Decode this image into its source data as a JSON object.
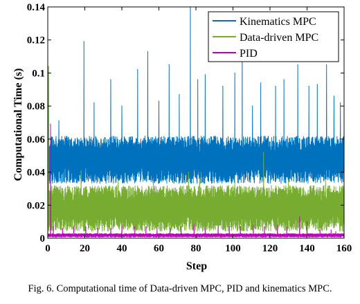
{
  "caption": "Fig. 6.  Computational time of Data-driven MPC, PID and kinematics MPC.",
  "chart_data": {
    "type": "line",
    "title": "",
    "xlabel": "Step",
    "ylabel": "Computational Time (s)",
    "xlim": [
      0,
      160
    ],
    "ylim": [
      0,
      0.14
    ],
    "xticks": [
      0,
      20,
      40,
      60,
      80,
      100,
      120,
      140,
      160
    ],
    "yticks": [
      0,
      0.02,
      0.04,
      0.06,
      0.08,
      0.1,
      0.12,
      0.14
    ],
    "xtick_labels": [
      "0",
      "20",
      "40",
      "60",
      "80",
      "100",
      "120",
      "140",
      "160"
    ],
    "ytick_labels": [
      "0",
      "0.02",
      "0.04",
      "0.06",
      "0.08",
      "0.1",
      "0.12",
      "0.14"
    ],
    "grid": false,
    "legend_position": "top-right",
    "series": [
      {
        "name": "Kinematics MPC",
        "color": "#0072BD",
        "band": [
          0.033,
          0.062
        ],
        "peaks": [
          [
            0.4,
            0.101
          ],
          [
            6,
            0.071
          ],
          [
            19.5,
            0.119
          ],
          [
            25,
            0.082
          ],
          [
            34,
            0.096
          ],
          [
            40,
            0.08
          ],
          [
            48.5,
            0.102
          ],
          [
            54,
            0.113
          ],
          [
            60,
            0.083
          ],
          [
            65.5,
            0.105
          ],
          [
            71,
            0.087
          ],
          [
            77,
            0.14
          ],
          [
            81,
            0.096
          ],
          [
            85,
            0.099
          ],
          [
            94.5,
            0.092
          ],
          [
            101,
            0.1
          ],
          [
            105,
            0.116
          ],
          [
            110.5,
            0.08
          ],
          [
            115,
            0.094
          ],
          [
            123,
            0.092
          ],
          [
            127.5,
            0.096
          ],
          [
            135,
            0.105
          ],
          [
            141,
            0.092
          ],
          [
            145.5,
            0.093
          ],
          [
            150.5,
            0.105
          ],
          [
            154.5,
            0.086
          ],
          [
            158,
            0.082
          ]
        ]
      },
      {
        "name": "Data-driven MPC",
        "color": "#77AC30",
        "band": [
          0.004,
          0.032
        ],
        "peaks": [
          [
            0.4,
            0.104
          ],
          [
            18,
            0.041
          ],
          [
            38,
            0.035
          ],
          [
            57,
            0.036
          ],
          [
            76,
            0.04
          ],
          [
            82,
            0.036
          ],
          [
            101,
            0.037
          ],
          [
            116.5,
            0.052
          ],
          [
            130,
            0.035
          ],
          [
            150,
            0.035
          ]
        ]
      },
      {
        "name": "PID",
        "color": "#C000C0",
        "band": [
          0.0005,
          0.003
        ],
        "peaks": [
          [
            1.5,
            0.069
          ],
          [
            3,
            0.007
          ],
          [
            8,
            0.006
          ],
          [
            14,
            0.007
          ],
          [
            20.5,
            0.007
          ],
          [
            27,
            0.006
          ],
          [
            34,
            0.006
          ],
          [
            40,
            0.008
          ],
          [
            47,
            0.007
          ],
          [
            53,
            0.007
          ],
          [
            59,
            0.006
          ],
          [
            66,
            0.006
          ],
          [
            72,
            0.007
          ],
          [
            79,
            0.008
          ],
          [
            85,
            0.006
          ],
          [
            92,
            0.007
          ],
          [
            98,
            0.007
          ],
          [
            104,
            0.007
          ],
          [
            111,
            0.008
          ],
          [
            117,
            0.007
          ],
          [
            124,
            0.008
          ],
          [
            129,
            0.007
          ],
          [
            136,
            0.013
          ],
          [
            140,
            0.01
          ],
          [
            147,
            0.005
          ],
          [
            153,
            0.005
          ],
          [
            155.5,
            0.004
          ]
        ]
      }
    ]
  }
}
